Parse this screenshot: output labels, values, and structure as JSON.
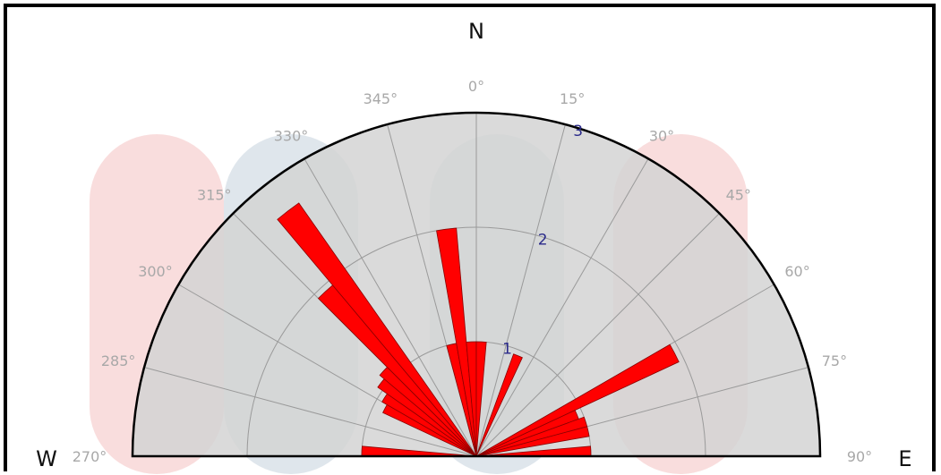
{
  "chart_data": {
    "type": "polar-bar",
    "title": "",
    "cardinals": {
      "north": "N",
      "west": "W",
      "east": "E"
    },
    "angle_labels": [
      "270°",
      "285°",
      "300°",
      "315°",
      "330°",
      "345°",
      "0°",
      "15°",
      "30°",
      "45°",
      "60°",
      "75°",
      "90°"
    ],
    "angle_values": [
      -90,
      -75,
      -60,
      -45,
      -30,
      -15,
      0,
      15,
      30,
      45,
      60,
      75,
      90
    ],
    "radial_labels": [
      "1",
      "2",
      "3"
    ],
    "radial_values": [
      1,
      2,
      3
    ],
    "rmax": 3,
    "sector_width_deg": 5,
    "sectors": [
      {
        "center": -87.5,
        "value": 1.0
      },
      {
        "center": -62.5,
        "value": 0.9
      },
      {
        "center": -57.5,
        "value": 0.95
      },
      {
        "center": -52.5,
        "value": 1.05
      },
      {
        "center": -47.5,
        "value": 1.1
      },
      {
        "center": -42.5,
        "value": 1.95
      },
      {
        "center": -37.5,
        "value": 2.7
      },
      {
        "center": -12.5,
        "value": 1.0
      },
      {
        "center": -7.5,
        "value": 2.0
      },
      {
        "center": -2.5,
        "value": 1.0
      },
      {
        "center": 2.5,
        "value": 1.0
      },
      {
        "center": 22.5,
        "value": 0.95
      },
      {
        "center": 62.5,
        "value": 1.95
      },
      {
        "center": 67.5,
        "value": 0.95
      },
      {
        "center": 72.5,
        "value": 1.0
      },
      {
        "center": 77.5,
        "value": 1.0
      },
      {
        "center": 87.5,
        "value": 1.0
      }
    ],
    "colors": {
      "bar": "#ff0000",
      "bar_edge": "#8a0000",
      "plot_bg": "#d3d3d3",
      "grid": "#9a9a9a",
      "watermark_red": "#f5c6c6",
      "watermark_blue": "#c9d6e0"
    }
  }
}
